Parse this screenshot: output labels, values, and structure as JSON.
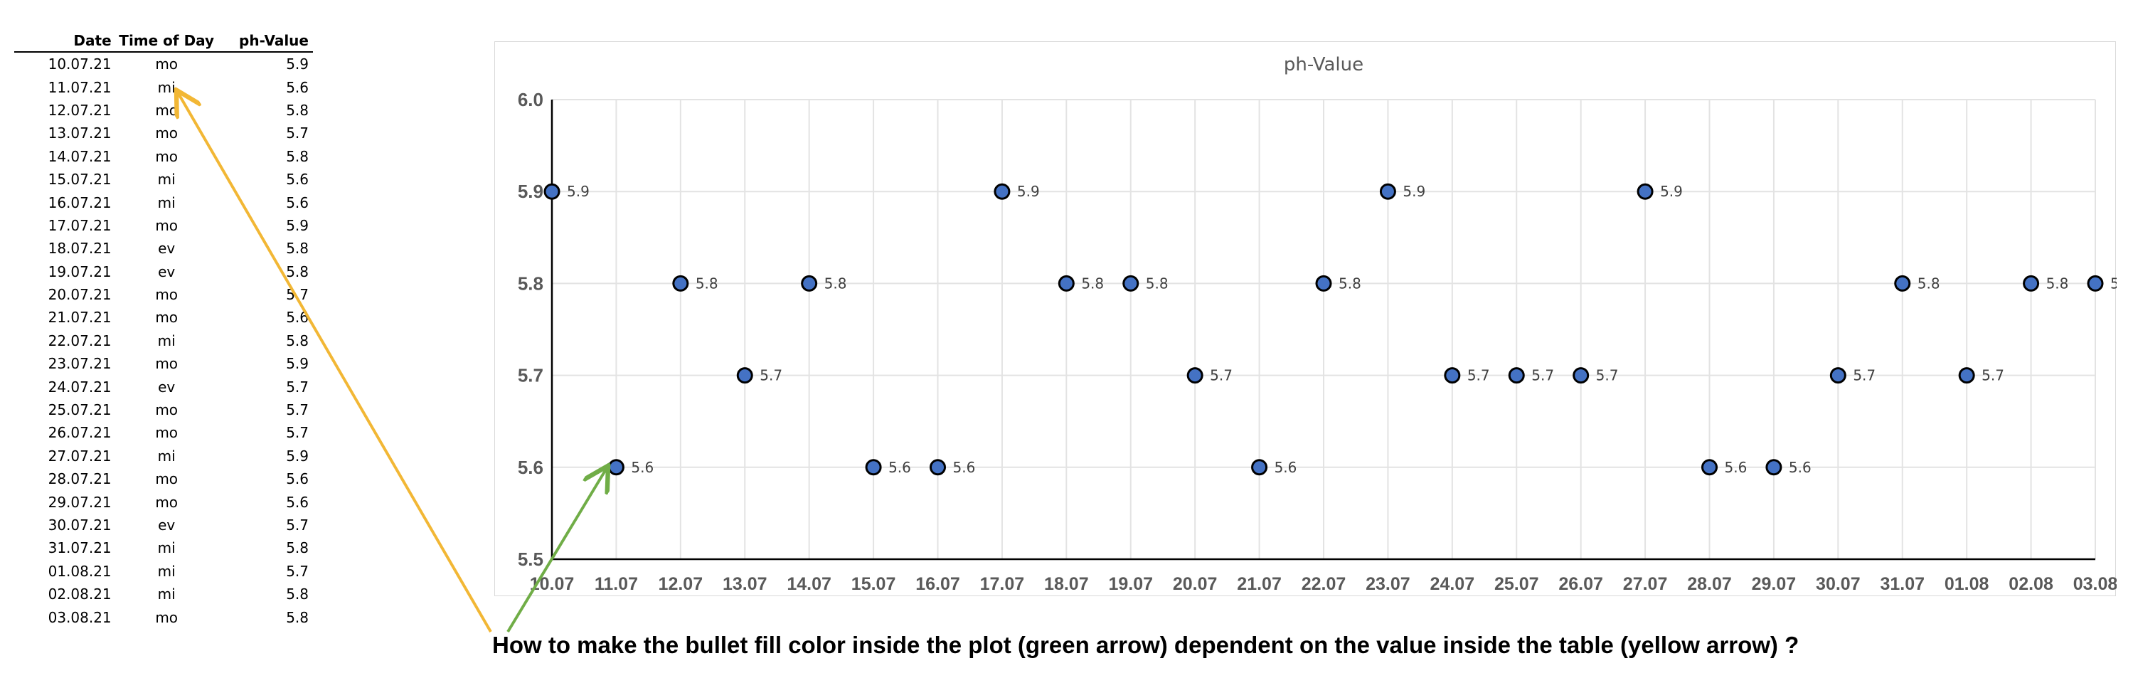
{
  "table": {
    "headers": [
      "Date",
      "Time of Day",
      "ph-Value"
    ],
    "rows": [
      [
        "10.07.21",
        "mo",
        "5.9"
      ],
      [
        "11.07.21",
        "mi",
        "5.6"
      ],
      [
        "12.07.21",
        "mo",
        "5.8"
      ],
      [
        "13.07.21",
        "mo",
        "5.7"
      ],
      [
        "14.07.21",
        "mo",
        "5.8"
      ],
      [
        "15.07.21",
        "mi",
        "5.6"
      ],
      [
        "16.07.21",
        "mi",
        "5.6"
      ],
      [
        "17.07.21",
        "mo",
        "5.9"
      ],
      [
        "18.07.21",
        "ev",
        "5.8"
      ],
      [
        "19.07.21",
        "ev",
        "5.8"
      ],
      [
        "20.07.21",
        "mo",
        "5.7"
      ],
      [
        "21.07.21",
        "mo",
        "5.6"
      ],
      [
        "22.07.21",
        "mi",
        "5.8"
      ],
      [
        "23.07.21",
        "mo",
        "5.9"
      ],
      [
        "24.07.21",
        "ev",
        "5.7"
      ],
      [
        "25.07.21",
        "mo",
        "5.7"
      ],
      [
        "26.07.21",
        "mo",
        "5.7"
      ],
      [
        "27.07.21",
        "mi",
        "5.9"
      ],
      [
        "28.07.21",
        "mo",
        "5.6"
      ],
      [
        "29.07.21",
        "mo",
        "5.6"
      ],
      [
        "30.07.21",
        "ev",
        "5.7"
      ],
      [
        "31.07.21",
        "mi",
        "5.8"
      ],
      [
        "01.08.21",
        "mi",
        "5.7"
      ],
      [
        "02.08.21",
        "mi",
        "5.8"
      ],
      [
        "03.08.21",
        "mo",
        "5.8"
      ]
    ]
  },
  "chart_data": {
    "type": "scatter",
    "title": "ph-Value",
    "categories": [
      "10.07",
      "11.07",
      "12.07",
      "13.07",
      "14.07",
      "15.07",
      "16.07",
      "17.07",
      "18.07",
      "19.07",
      "20.07",
      "21.07",
      "22.07",
      "23.07",
      "24.07",
      "25.07",
      "26.07",
      "27.07",
      "28.07",
      "29.07",
      "30.07",
      "31.07",
      "01.08",
      "02.08",
      "03.08"
    ],
    "series": [
      {
        "values": [
          5.9,
          5.6,
          5.8,
          5.7,
          5.8,
          5.6,
          5.6,
          5.9,
          5.8,
          5.8,
          5.7,
          5.6,
          5.8,
          5.9,
          5.7,
          5.7,
          5.7,
          5.9,
          5.6,
          5.6,
          5.7,
          5.8,
          5.7,
          5.8,
          5.8
        ]
      }
    ],
    "ylim": [
      5.5,
      6.0
    ],
    "yticks": [
      "5.5",
      "5.6",
      "5.7",
      "5.8",
      "5.9",
      "6.0"
    ],
    "grid": true,
    "legend": "none",
    "marker_color": "#4472c4",
    "marker_edge": "#000000"
  },
  "annotation": {
    "question": "How to make the bullet fill color inside the plot (green arrow) dependent on the value inside the table (yellow arrow) ?",
    "yellow_arrow_color": "#f2b735",
    "green_arrow_color": "#70ad47"
  }
}
